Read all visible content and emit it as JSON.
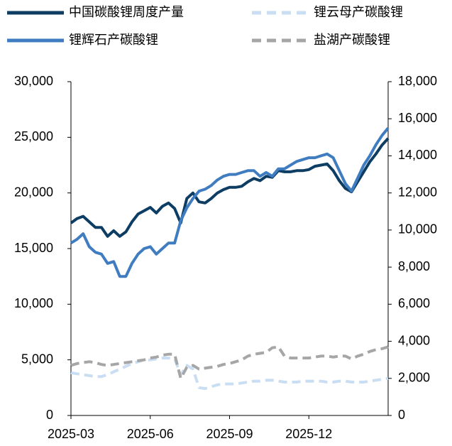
{
  "chart_data": {
    "type": "line",
    "categories": [
      "2025-03",
      null,
      null,
      null,
      null,
      null,
      null,
      null,
      null,
      null,
      null,
      null,
      null,
      "2025-06",
      null,
      null,
      null,
      null,
      null,
      null,
      null,
      null,
      null,
      null,
      null,
      null,
      "2025-09",
      null,
      null,
      null,
      null,
      null,
      null,
      null,
      null,
      null,
      null,
      null,
      null,
      "2025-12",
      null,
      null,
      null,
      null,
      null,
      null,
      null,
      null,
      null,
      null,
      null,
      null,
      null
    ],
    "ylim": [
      0,
      30000
    ],
    "yticks": [
      0,
      {
        "value": 5000,
        "label": "5,000"
      },
      {
        "value": 10000,
        "label": "10,000"
      },
      {
        "value": 15000,
        "label": "15,000"
      },
      {
        "value": 20000,
        "label": "20,000"
      },
      {
        "value": 25000,
        "label": "25,000"
      },
      {
        "value": 30000,
        "label": "30,000"
      }
    ],
    "y2lim": [
      0,
      18000
    ],
    "y2ticks": [
      0,
      {
        "value": 2000,
        "label": "2,000"
      },
      {
        "value": 4000,
        "label": "4,000"
      },
      {
        "value": 6000,
        "label": "6,000"
      },
      {
        "value": 8000,
        "label": "8,000"
      },
      {
        "value": 10000,
        "label": "10,000"
      },
      {
        "value": 12000,
        "label": "12,000"
      },
      {
        "value": 14000,
        "label": "14,000"
      },
      {
        "value": 16000,
        "label": "16,000"
      },
      {
        "value": 18000,
        "label": "18,000"
      }
    ],
    "grid": false,
    "legend": "top",
    "series": [
      {
        "name": "中国碳酸锂周度产量",
        "color": "#0d3d63",
        "dashed": false,
        "values": [
          17300,
          17700,
          17900,
          17400,
          16900,
          16900,
          16100,
          16600,
          16100,
          16500,
          17400,
          18100,
          18400,
          18700,
          18200,
          18800,
          19100,
          18600,
          17300,
          19500,
          20000,
          19200,
          19100,
          19500,
          20000,
          20300,
          20500,
          20500,
          20600,
          21000,
          21300,
          21100,
          21500,
          21400,
          22000,
          21900,
          21900,
          22000,
          22000,
          22100,
          22400,
          22500,
          22600,
          22000,
          21100,
          20400,
          20100,
          21000,
          21900,
          22800,
          23500,
          24300,
          24900
        ]
      },
      {
        "name": "锂云母产碳酸锂",
        "color": "#c9def2",
        "dashed": true,
        "axis": "y2",
        "values": [
          2300,
          2250,
          2200,
          2150,
          2100,
          2100,
          2200,
          2350,
          2500,
          2650,
          2800,
          2900,
          3000,
          3000,
          3050,
          3100,
          3100,
          3050,
          2200,
          2700,
          2500,
          1500,
          1450,
          1550,
          1650,
          1700,
          1700,
          1700,
          1750,
          1800,
          1850,
          1850,
          1900,
          1900,
          1850,
          1800,
          1800,
          1800,
          1850,
          1850,
          1850,
          1850,
          1800,
          1800,
          1850,
          1850,
          1800,
          1800,
          1800,
          1850,
          1900,
          1950,
          2000
        ]
      },
      {
        "name": "锂辉石产碳酸锂",
        "color": "#3f7dc0",
        "dashed": false,
        "axis": "y2",
        "values": [
          9300,
          9500,
          9800,
          9100,
          8800,
          8700,
          8200,
          8300,
          7500,
          7500,
          8200,
          8700,
          9000,
          9100,
          8700,
          9000,
          9300,
          9300,
          10500,
          11200,
          11700,
          12100,
          12200,
          12400,
          12700,
          12900,
          13000,
          13000,
          13100,
          13200,
          13200,
          12900,
          13100,
          12900,
          13300,
          13300,
          13500,
          13700,
          13800,
          13900,
          13900,
          14000,
          14100,
          13900,
          13200,
          12500,
          12100,
          12800,
          13500,
          14000,
          14600,
          15100,
          15500
        ]
      },
      {
        "name": "盐湖产碳酸锂",
        "color": "#a6a6a6",
        "dashed": true,
        "axis": "y2",
        "values": [
          2700,
          2800,
          2850,
          2900,
          2850,
          2750,
          2700,
          2750,
          2800,
          2850,
          2900,
          2950,
          3000,
          3100,
          3150,
          3250,
          3300,
          3300,
          2000,
          2600,
          2700,
          2500,
          2550,
          2600,
          2650,
          2750,
          2800,
          2900,
          3000,
          3200,
          3300,
          3350,
          3400,
          3650,
          3700,
          3200,
          3100,
          3100,
          3100,
          3100,
          3150,
          3200,
          3200,
          3150,
          3200,
          3200,
          3050,
          3200,
          3300,
          3450,
          3550,
          3600,
          3700
        ]
      }
    ]
  }
}
